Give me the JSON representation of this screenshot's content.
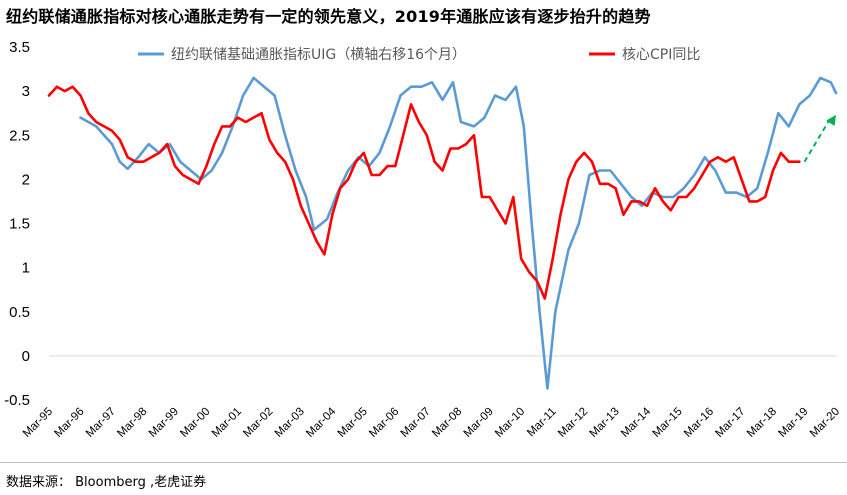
{
  "title": "纽约联储通胀指标对核心通胀走势有一定的领先意义，2019年通胀应该有逐步抬升的趋势",
  "source": "数据来源：  Bloomberg ,老虎证券",
  "colors": {
    "uig": "#5b9bd5",
    "cpi": "#ff0000",
    "trend_arrow": "#00b050"
  },
  "chart_data": {
    "type": "line",
    "xlabel": "",
    "ylabel": "",
    "ylim": [
      -0.5,
      3.5
    ],
    "yticks": [
      "3.5",
      "3",
      "2.5",
      "2",
      "1.5",
      "1",
      "0.5",
      "0",
      "-0.5"
    ],
    "xticks": [
      "Mar-95",
      "Mar-96",
      "Mar-97",
      "Mar-98",
      "Mar-99",
      "Mar-00",
      "Mar-01",
      "Mar-02",
      "Mar-03",
      "Mar-04",
      "Mar-05",
      "Mar-06",
      "Mar-07",
      "Mar-08",
      "Mar-09",
      "Mar-10",
      "Mar-11",
      "Mar-12",
      "Mar-13",
      "Mar-14",
      "Mar-15",
      "Mar-16",
      "Mar-17",
      "Mar-18",
      "Mar-19",
      "Mar-20"
    ],
    "grid": false,
    "legend_position": "top",
    "series": [
      {
        "name": "纽约联储基础通胀指标UIG（横轴右移16个月）",
        "color": "#5b9bd5",
        "points": [
          [
            "1996-03",
            2.7
          ],
          [
            "1996-09",
            2.6
          ],
          [
            "1997-03",
            2.4
          ],
          [
            "1997-06",
            2.2
          ],
          [
            "1997-09",
            2.12
          ],
          [
            "1998-01",
            2.25
          ],
          [
            "1998-05",
            2.4
          ],
          [
            "1998-09",
            2.3
          ],
          [
            "1999-01",
            2.4
          ],
          [
            "1999-05",
            2.2
          ],
          [
            "1999-09",
            2.1
          ],
          [
            "2000-01",
            2.0
          ],
          [
            "2000-05",
            2.1
          ],
          [
            "2000-09",
            2.3
          ],
          [
            "2001-01",
            2.6
          ],
          [
            "2001-05",
            2.95
          ],
          [
            "2001-09",
            3.15
          ],
          [
            "2002-01",
            3.05
          ],
          [
            "2002-05",
            2.95
          ],
          [
            "2002-09",
            2.5
          ],
          [
            "2003-01",
            2.1
          ],
          [
            "2003-05",
            1.8
          ],
          [
            "2003-08",
            1.43
          ],
          [
            "2004-01",
            1.55
          ],
          [
            "2004-05",
            1.85
          ],
          [
            "2004-09",
            2.1
          ],
          [
            "2005-01",
            2.25
          ],
          [
            "2005-05",
            2.15
          ],
          [
            "2005-09",
            2.3
          ],
          [
            "2006-01",
            2.6
          ],
          [
            "2006-05",
            2.95
          ],
          [
            "2006-09",
            3.05
          ],
          [
            "2007-01",
            3.05
          ],
          [
            "2007-05",
            3.1
          ],
          [
            "2007-09",
            2.9
          ],
          [
            "2008-01",
            3.1
          ],
          [
            "2008-04",
            2.65
          ],
          [
            "2008-09",
            2.6
          ],
          [
            "2009-01",
            2.7
          ],
          [
            "2009-05",
            2.95
          ],
          [
            "2009-09",
            2.9
          ],
          [
            "2010-01",
            3.05
          ],
          [
            "2010-04",
            2.6
          ],
          [
            "2010-07",
            1.5
          ],
          [
            "2010-10",
            0.5
          ],
          [
            "2011-01",
            -0.37
          ],
          [
            "2011-04",
            0.5
          ],
          [
            "2011-09",
            1.2
          ],
          [
            "2012-01",
            1.5
          ],
          [
            "2012-05",
            2.05
          ],
          [
            "2012-09",
            2.1
          ],
          [
            "2013-01",
            2.1
          ],
          [
            "2013-05",
            1.95
          ],
          [
            "2013-09",
            1.8
          ],
          [
            "2014-01",
            1.7
          ],
          [
            "2014-05",
            1.85
          ],
          [
            "2014-09",
            1.8
          ],
          [
            "2015-01",
            1.8
          ],
          [
            "2015-05",
            1.9
          ],
          [
            "2015-09",
            2.05
          ],
          [
            "2016-01",
            2.25
          ],
          [
            "2016-05",
            2.1
          ],
          [
            "2016-09",
            1.85
          ],
          [
            "2017-01",
            1.85
          ],
          [
            "2017-05",
            1.8
          ],
          [
            "2017-09",
            1.9
          ],
          [
            "2018-01",
            2.3
          ],
          [
            "2018-05",
            2.75
          ],
          [
            "2018-09",
            2.6
          ],
          [
            "2019-01",
            2.85
          ],
          [
            "2019-05",
            2.95
          ],
          [
            "2019-09",
            3.15
          ],
          [
            "2020-01",
            3.1
          ],
          [
            "2020-03",
            2.98
          ]
        ]
      },
      {
        "name": "核心CPI同比",
        "color": "#ff0000",
        "points": [
          [
            "1995-03",
            2.95
          ],
          [
            "1995-06",
            3.05
          ],
          [
            "1995-09",
            3.0
          ],
          [
            "1995-12",
            3.05
          ],
          [
            "1996-03",
            2.95
          ],
          [
            "1996-06",
            2.75
          ],
          [
            "1996-09",
            2.65
          ],
          [
            "1996-12",
            2.6
          ],
          [
            "1997-03",
            2.55
          ],
          [
            "1997-06",
            2.45
          ],
          [
            "1997-09",
            2.25
          ],
          [
            "1997-12",
            2.2
          ],
          [
            "1998-03",
            2.2
          ],
          [
            "1998-06",
            2.25
          ],
          [
            "1998-09",
            2.3
          ],
          [
            "1998-12",
            2.4
          ],
          [
            "1999-03",
            2.15
          ],
          [
            "1999-06",
            2.05
          ],
          [
            "1999-09",
            2.0
          ],
          [
            "1999-12",
            1.95
          ],
          [
            "2000-03",
            2.15
          ],
          [
            "2000-06",
            2.4
          ],
          [
            "2000-09",
            2.6
          ],
          [
            "2000-12",
            2.6
          ],
          [
            "2001-03",
            2.7
          ],
          [
            "2001-06",
            2.65
          ],
          [
            "2001-09",
            2.7
          ],
          [
            "2001-12",
            2.75
          ],
          [
            "2002-03",
            2.45
          ],
          [
            "2002-06",
            2.3
          ],
          [
            "2002-09",
            2.2
          ],
          [
            "2002-12",
            2.0
          ],
          [
            "2003-03",
            1.7
          ],
          [
            "2003-06",
            1.5
          ],
          [
            "2003-09",
            1.3
          ],
          [
            "2003-12",
            1.15
          ],
          [
            "2004-03",
            1.6
          ],
          [
            "2004-06",
            1.9
          ],
          [
            "2004-09",
            2.0
          ],
          [
            "2004-12",
            2.2
          ],
          [
            "2005-03",
            2.3
          ],
          [
            "2005-06",
            2.05
          ],
          [
            "2005-09",
            2.05
          ],
          [
            "2005-12",
            2.15
          ],
          [
            "2006-03",
            2.15
          ],
          [
            "2006-06",
            2.5
          ],
          [
            "2006-09",
            2.85
          ],
          [
            "2006-12",
            2.65
          ],
          [
            "2007-03",
            2.5
          ],
          [
            "2007-06",
            2.2
          ],
          [
            "2007-09",
            2.1
          ],
          [
            "2007-12",
            2.35
          ],
          [
            "2008-03",
            2.35
          ],
          [
            "2008-06",
            2.4
          ],
          [
            "2008-09",
            2.5
          ],
          [
            "2008-12",
            1.8
          ],
          [
            "2009-03",
            1.8
          ],
          [
            "2009-06",
            1.65
          ],
          [
            "2009-09",
            1.5
          ],
          [
            "2009-12",
            1.8
          ],
          [
            "2010-03",
            1.1
          ],
          [
            "2010-06",
            0.95
          ],
          [
            "2010-09",
            0.85
          ],
          [
            "2010-12",
            0.65
          ],
          [
            "2011-03",
            1.1
          ],
          [
            "2011-06",
            1.6
          ],
          [
            "2011-09",
            2.0
          ],
          [
            "2011-12",
            2.2
          ],
          [
            "2012-03",
            2.3
          ],
          [
            "2012-06",
            2.2
          ],
          [
            "2012-09",
            1.95
          ],
          [
            "2012-12",
            1.95
          ],
          [
            "2013-03",
            1.9
          ],
          [
            "2013-06",
            1.6
          ],
          [
            "2013-09",
            1.75
          ],
          [
            "2013-12",
            1.75
          ],
          [
            "2014-03",
            1.7
          ],
          [
            "2014-06",
            1.9
          ],
          [
            "2014-09",
            1.75
          ],
          [
            "2014-12",
            1.65
          ],
          [
            "2015-03",
            1.8
          ],
          [
            "2015-06",
            1.8
          ],
          [
            "2015-09",
            1.9
          ],
          [
            "2015-12",
            2.05
          ],
          [
            "2016-03",
            2.2
          ],
          [
            "2016-06",
            2.25
          ],
          [
            "2016-09",
            2.2
          ],
          [
            "2016-12",
            2.25
          ],
          [
            "2017-03",
            2.0
          ],
          [
            "2017-06",
            1.75
          ],
          [
            "2017-09",
            1.75
          ],
          [
            "2017-12",
            1.8
          ],
          [
            "2018-03",
            2.1
          ],
          [
            "2018-06",
            2.3
          ],
          [
            "2018-09",
            2.2
          ],
          [
            "2018-12",
            2.2
          ],
          [
            "2019-01",
            2.2
          ]
        ]
      }
    ],
    "annotations": [
      {
        "type": "dashed-arrow",
        "color": "#00b050",
        "from": [
          "2019-03",
          2.2
        ],
        "to": [
          "2020-03",
          2.73
        ]
      }
    ]
  }
}
